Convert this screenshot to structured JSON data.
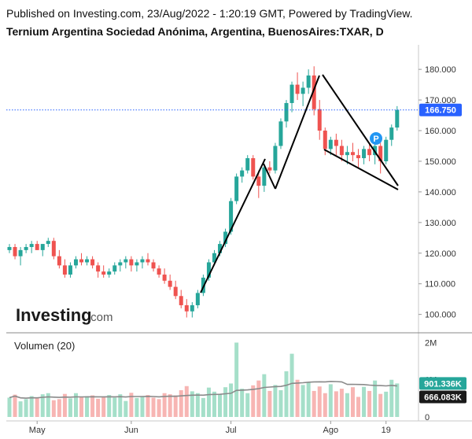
{
  "header": {
    "published": "Published on Investing.com, 23/Aug/2022 - 1:20:19 GMT, Powered by TradingView.",
    "symbol": "Ternium Argentina Sociedad Anónima, Argentina, BuenosAires:TXAR, D"
  },
  "logo": {
    "name": "Investing",
    "domain": ".com"
  },
  "colors": {
    "up": "#26a69a",
    "down": "#ef5350",
    "vol_up": "#a5dfc9",
    "vol_down": "#f7b5b3",
    "price_badge": "#2962ff",
    "vol_ma": "#888888"
  },
  "price_badge": "166.750",
  "volume_badges": {
    "current": "901.336K",
    "ma": "666.083K"
  },
  "volume_title": "Volumen (20)",
  "chart_data": [
    {
      "type": "candlestick",
      "title": "Ternium Argentina Sociedad Anónima, Argentina, BuenosAires:TXAR, D",
      "y_ticks": [
        "100.000",
        "110.000",
        "120.000",
        "130.000",
        "140.000",
        "150.000",
        "160.000",
        "170.000",
        "180.000"
      ],
      "ylim": [
        94,
        188
      ],
      "x_ticks": [
        "May",
        "Jun",
        "Jul",
        "Ago",
        "19"
      ],
      "last_price": 166.75,
      "candles": [
        [
          121,
          123,
          120,
          122
        ],
        [
          122,
          123,
          118,
          119
        ],
        [
          119,
          122,
          116,
          121
        ],
        [
          121,
          123,
          120,
          122
        ],
        [
          122,
          124,
          120,
          123
        ],
        [
          123,
          124,
          121,
          121
        ],
        [
          121,
          123,
          119,
          123
        ],
        [
          123,
          125,
          122,
          124
        ],
        [
          124,
          125,
          118,
          119
        ],
        [
          119,
          121,
          115,
          116
        ],
        [
          116,
          118,
          112,
          113
        ],
        [
          113,
          117,
          112,
          116
        ],
        [
          116,
          119,
          115,
          118
        ],
        [
          118,
          120,
          116,
          117
        ],
        [
          117,
          119,
          116,
          118
        ],
        [
          118,
          119,
          115,
          116
        ],
        [
          116,
          117,
          112,
          114
        ],
        [
          114,
          116,
          112,
          113
        ],
        [
          113,
          115,
          112,
          114
        ],
        [
          114,
          117,
          113,
          116
        ],
        [
          116,
          118,
          114,
          117
        ],
        [
          117,
          119,
          115,
          118
        ],
        [
          118,
          119,
          114,
          116
        ],
        [
          116,
          118,
          114,
          117
        ],
        [
          117,
          119,
          115,
          118
        ],
        [
          118,
          120,
          116,
          117
        ],
        [
          117,
          118,
          114,
          115
        ],
        [
          115,
          116,
          112,
          113
        ],
        [
          113,
          115,
          110,
          111
        ],
        [
          111,
          113,
          108,
          109
        ],
        [
          109,
          111,
          105,
          106
        ],
        [
          106,
          108,
          102,
          103
        ],
        [
          103,
          105,
          99,
          101
        ],
        [
          101,
          104,
          99,
          103
        ],
        [
          103,
          108,
          102,
          107
        ],
        [
          107,
          113,
          106,
          112
        ],
        [
          112,
          118,
          111,
          117
        ],
        [
          117,
          121,
          116,
          120
        ],
        [
          120,
          124,
          119,
          123
        ],
        [
          123,
          128,
          122,
          127
        ],
        [
          127,
          138,
          126,
          137
        ],
        [
          137,
          146,
          136,
          145
        ],
        [
          145,
          148,
          143,
          147
        ],
        [
          147,
          152,
          146,
          151
        ],
        [
          151,
          152,
          144,
          145
        ],
        [
          145,
          147,
          138,
          142
        ],
        [
          142,
          149,
          140,
          148
        ],
        [
          148,
          150,
          146,
          147
        ],
        [
          147,
          156,
          146,
          155
        ],
        [
          155,
          164,
          154,
          163
        ],
        [
          163,
          170,
          161,
          169
        ],
        [
          169,
          176,
          166,
          175
        ],
        [
          175,
          179,
          170,
          172
        ],
        [
          172,
          176,
          168,
          174
        ],
        [
          174,
          180,
          172,
          178
        ],
        [
          178,
          181,
          165,
          167
        ],
        [
          167,
          170,
          157,
          160
        ],
        [
          160,
          161,
          152,
          154
        ],
        [
          154,
          158,
          152,
          157
        ],
        [
          157,
          159,
          152,
          155
        ],
        [
          155,
          157,
          150,
          152
        ],
        [
          152,
          155,
          149,
          153
        ],
        [
          153,
          156,
          150,
          152
        ],
        [
          152,
          154,
          148,
          151
        ],
        [
          151,
          155,
          149,
          154
        ],
        [
          154,
          156,
          150,
          152
        ],
        [
          152,
          156,
          149,
          155
        ],
        [
          155,
          156,
          146,
          150
        ],
        [
          150,
          158,
          149,
          157
        ],
        [
          157,
          162,
          155,
          161
        ],
        [
          161,
          168,
          160,
          166.75
        ]
      ]
    },
    {
      "type": "bar",
      "title": "Volumen (20)",
      "y_ticks": [
        "0",
        "1M",
        "2M"
      ],
      "ylim": [
        0,
        2200000
      ],
      "values": [
        520000,
        600000,
        420000,
        480000,
        560000,
        510000,
        610000,
        640000,
        450000,
        480000,
        620000,
        500000,
        640000,
        530000,
        560000,
        580000,
        490000,
        540000,
        590000,
        520000,
        610000,
        430000,
        650000,
        510000,
        560000,
        590000,
        520000,
        480000,
        640000,
        610000,
        580000,
        720000,
        830000,
        690000,
        640000,
        510000,
        790000,
        680000,
        620000,
        800000,
        900000,
        2000000,
        760000,
        640000,
        850000,
        980000,
        1150000,
        700000,
        860000,
        720000,
        1230000,
        1700000,
        1000000,
        860000,
        940000,
        700000,
        820000,
        640000,
        880000,
        690000,
        760000,
        640000,
        800000,
        540000,
        810000,
        700000,
        980000,
        620000,
        680000,
        1000000,
        901336
      ],
      "ma_last": 666083
    }
  ]
}
